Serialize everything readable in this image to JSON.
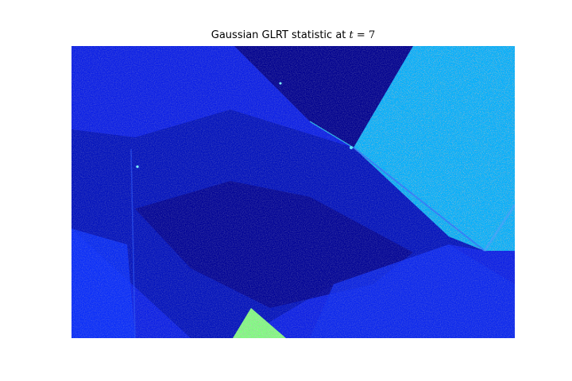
{
  "figure": {
    "title_prefix": "Gaussian GLRT statistic at ",
    "title_var": "t",
    "title_eq": " = ",
    "title_value": "7"
  },
  "chart_data": {
    "type": "heatmap",
    "title": "Gaussian GLRT statistic at t = 7",
    "xlabel": "",
    "ylabel": "",
    "axes": "off",
    "grid": false,
    "colormap": "jet",
    "colorbar": false,
    "regions": [
      {
        "name": "background field",
        "level": 0.12
      },
      {
        "name": "dark diagonal band",
        "level": 0.05
      },
      {
        "name": "bright upper-right patch",
        "level": 0.45
      },
      {
        "name": "dark upper strip",
        "level": 0.06
      },
      {
        "name": "bottom triangle patch",
        "level": 0.65
      }
    ],
    "colors": {
      "low": "#00008f",
      "mid_low": "#0000ff",
      "mid": "#00bfff",
      "mid_high": "#7fff7f",
      "high": "#ffff00"
    }
  }
}
